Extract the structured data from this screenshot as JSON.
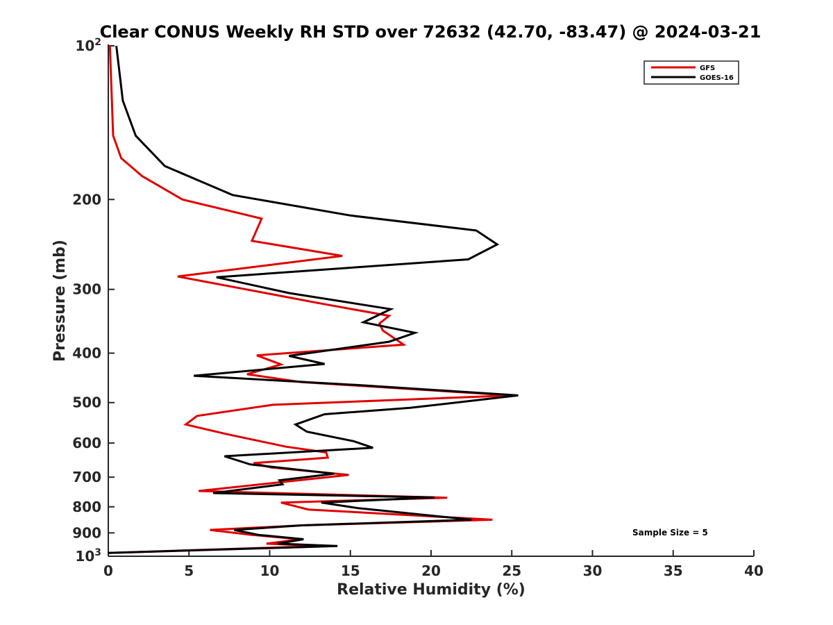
{
  "chart_data": {
    "type": "line",
    "title": "Clear CONUS Weekly RH STD over 72632 (42.70, -83.47) @ 2024-03-21",
    "xlabel": "Relative Humidity (%)",
    "ylabel": "Pressure (mb)",
    "xlim": [
      0,
      40
    ],
    "ylim": [
      100,
      1000
    ],
    "y_scale": "log",
    "y_reversed": true,
    "grid": false,
    "legend_position": "top-right",
    "x_ticks": [
      0,
      5,
      10,
      15,
      20,
      25,
      30,
      35,
      40
    ],
    "x_tick_labels": [
      "0",
      "5",
      "10",
      "15",
      "20",
      "25",
      "30",
      "35",
      "40"
    ],
    "y_ticks": [
      100,
      200,
      300,
      400,
      500,
      600,
      700,
      800,
      900,
      1000
    ],
    "y_tick_labels": [
      {
        "base": "10",
        "exp": "2"
      },
      {
        "base": "200",
        "exp": ""
      },
      {
        "base": "300",
        "exp": ""
      },
      {
        "base": "400",
        "exp": ""
      },
      {
        "base": "500",
        "exp": ""
      },
      {
        "base": "600",
        "exp": ""
      },
      {
        "base": "700",
        "exp": ""
      },
      {
        "base": "800",
        "exp": ""
      },
      {
        "base": "900",
        "exp": ""
      },
      {
        "base": "10",
        "exp": "3"
      }
    ],
    "annotation": "Sample Size = 5",
    "series": [
      {
        "name": "GFS",
        "color": "#e00000",
        "points": [
          [
            0.1,
            100
          ],
          [
            0.3,
            150
          ],
          [
            0.8,
            166
          ],
          [
            2.1,
            180
          ],
          [
            4.6,
            200
          ],
          [
            9.5,
            218
          ],
          [
            8.9,
            241
          ],
          [
            14.5,
            258
          ],
          [
            4.3,
            283
          ],
          [
            13.0,
            319
          ],
          [
            17.4,
            338
          ],
          [
            16.8,
            350
          ],
          [
            17.0,
            361
          ],
          [
            18.3,
            385
          ],
          [
            9.2,
            404
          ],
          [
            10.7,
            421
          ],
          [
            8.6,
            440
          ],
          [
            12.0,
            456
          ],
          [
            25.0,
            484
          ],
          [
            10.2,
            505
          ],
          [
            5.5,
            531
          ],
          [
            4.8,
            552
          ],
          [
            7.3,
            576
          ],
          [
            11.0,
            610
          ],
          [
            13.5,
            626
          ],
          [
            13.6,
            641
          ],
          [
            9.0,
            657
          ],
          [
            10.1,
            670
          ],
          [
            14.9,
            693
          ],
          [
            5.6,
            745
          ],
          [
            21.0,
            768
          ],
          [
            10.7,
            785
          ],
          [
            12.4,
            810
          ],
          [
            23.8,
            848
          ],
          [
            12.0,
            870
          ],
          [
            6.3,
            888
          ],
          [
            8.9,
            908
          ],
          [
            11.9,
            926
          ],
          [
            9.8,
            945
          ],
          [
            13.2,
            955
          ],
          [
            0.0,
            985
          ]
        ]
      },
      {
        "name": "GOES-16",
        "color": "#000000",
        "points": [
          [
            0.5,
            100
          ],
          [
            0.9,
            128
          ],
          [
            1.7,
            150
          ],
          [
            3.5,
            172
          ],
          [
            7.7,
            196
          ],
          [
            15.0,
            215
          ],
          [
            22.8,
            230
          ],
          [
            24.1,
            245
          ],
          [
            22.3,
            262
          ],
          [
            6.7,
            284
          ],
          [
            11.2,
            305
          ],
          [
            17.5,
            328
          ],
          [
            15.8,
            348
          ],
          [
            19.0,
            365
          ],
          [
            17.4,
            380
          ],
          [
            11.2,
            405
          ],
          [
            13.4,
            420
          ],
          [
            5.3,
            443
          ],
          [
            15.5,
            462
          ],
          [
            25.4,
            484
          ],
          [
            18.7,
            512
          ],
          [
            13.4,
            527
          ],
          [
            11.6,
            552
          ],
          [
            12.3,
            570
          ],
          [
            15.2,
            595
          ],
          [
            16.4,
            613
          ],
          [
            7.2,
            637
          ],
          [
            8.8,
            661
          ],
          [
            14.0,
            689
          ],
          [
            10.6,
            710
          ],
          [
            10.8,
            723
          ],
          [
            6.5,
            752
          ],
          [
            20.2,
            767
          ],
          [
            13.2,
            785
          ],
          [
            15.5,
            805
          ],
          [
            22.5,
            848
          ],
          [
            12.0,
            870
          ],
          [
            7.8,
            888
          ],
          [
            9.3,
            908
          ],
          [
            12.1,
            926
          ],
          [
            10.5,
            945
          ],
          [
            14.2,
            955
          ],
          [
            0.0,
            985
          ]
        ]
      }
    ]
  }
}
